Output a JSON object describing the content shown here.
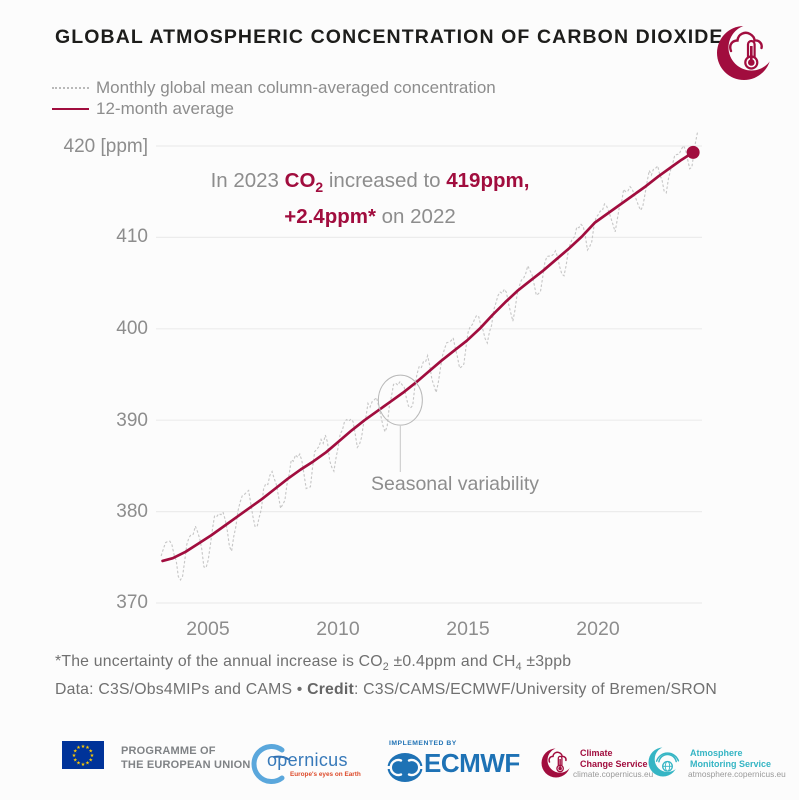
{
  "header": {
    "title": "GLOBAL ATMOSPHERIC CONCENTRATION OF CARBON DIOXIDE",
    "logo": "c3s-crescent-cloud-thermometer"
  },
  "colors": {
    "accent_burgundy": "#a10d3e",
    "title_dark": "#1d1d1b",
    "text_gray": "#8d8d8d",
    "footnote_gray": "#707070",
    "gridline": "#ececec",
    "monthly_dotted": "#c7c7c7",
    "eu_flag_blue": "#003399",
    "eu_star_yellow": "#ffcc00",
    "ecmwf_blue": "#1e72b5",
    "copernicus_blue": "#3779b9",
    "copernicus_tagline_orange": "#dd4a2a",
    "cams_teal": "#35b5c4",
    "background": "#fcfcfc"
  },
  "callout": {
    "line1": [
      {
        "t": "In 2023 ",
        "s": "p"
      },
      {
        "t": "CO",
        "s": "a"
      },
      {
        "t": "2",
        "s": "asub"
      },
      {
        "t": " increased to ",
        "s": "p"
      },
      {
        "t": "419ppm,",
        "s": "a"
      }
    ],
    "line2": [
      {
        "t": "+2.4ppm*",
        "s": "a"
      },
      {
        "t": " on 2022",
        "s": "p"
      }
    ]
  },
  "chart_data": {
    "type": "line",
    "title": "GLOBAL ATMOSPHERIC CONCENTRATION OF CARBON DIOXIDE",
    "unit": "ppm",
    "xlim": [
      2003.0,
      2024.1
    ],
    "ylim": [
      369.5,
      421.5
    ],
    "yticks": [
      420,
      410,
      400,
      390,
      380,
      370
    ],
    "ytick_labels": [
      "420 [ppm]",
      "410",
      "400",
      "390",
      "380",
      "370"
    ],
    "xticks": [
      2005,
      2010,
      2015,
      2020
    ],
    "xtick_labels": [
      "2005",
      "2010",
      "2015",
      "2020"
    ],
    "grid": "horizontal",
    "legend_position": "top-left",
    "series": [
      {
        "name": "Monthly global mean column-averaged concentration",
        "style": "dotted",
        "color": "#c7c7c7",
        "derivation": "12-month average plus seasonal cycle",
        "seasonal_amplitude_start_ppm": 2.4,
        "seasonal_amplitude_end_ppm": 1.5,
        "seasonal_peak_month": "April",
        "noise_ppm": 0.5
      },
      {
        "name": "12-month average",
        "style": "solid",
        "color": "#a10d3e",
        "points": [
          [
            2003.1,
            374.6
          ],
          [
            2003.5,
            374.9
          ],
          [
            2004.0,
            375.6
          ],
          [
            2004.5,
            376.5
          ],
          [
            2005.0,
            377.4
          ],
          [
            2005.5,
            378.4
          ],
          [
            2006.0,
            379.4
          ],
          [
            2006.5,
            380.4
          ],
          [
            2007.0,
            381.4
          ],
          [
            2007.5,
            382.5
          ],
          [
            2008.0,
            383.6
          ],
          [
            2008.5,
            384.6
          ],
          [
            2009.0,
            385.5
          ],
          [
            2009.5,
            386.5
          ],
          [
            2010.0,
            387.7
          ],
          [
            2010.5,
            388.9
          ],
          [
            2011.0,
            390.0
          ],
          [
            2011.5,
            391.0
          ],
          [
            2012.0,
            392.0
          ],
          [
            2012.5,
            393.0
          ],
          [
            2013.0,
            394.1
          ],
          [
            2013.5,
            395.3
          ],
          [
            2014.0,
            396.5
          ],
          [
            2014.5,
            397.6
          ],
          [
            2015.0,
            398.7
          ],
          [
            2015.5,
            400.0
          ],
          [
            2016.0,
            401.5
          ],
          [
            2016.5,
            402.9
          ],
          [
            2017.0,
            404.2
          ],
          [
            2017.5,
            405.3
          ],
          [
            2018.0,
            406.4
          ],
          [
            2018.5,
            407.6
          ],
          [
            2019.0,
            408.8
          ],
          [
            2019.5,
            410.1
          ],
          [
            2020.0,
            411.6
          ],
          [
            2020.5,
            412.6
          ],
          [
            2021.0,
            413.6
          ],
          [
            2021.5,
            414.6
          ],
          [
            2022.0,
            415.6
          ],
          [
            2022.5,
            416.7
          ],
          [
            2023.0,
            417.7
          ],
          [
            2023.4,
            418.5
          ],
          [
            2023.85,
            419.3
          ]
        ]
      }
    ],
    "end_marker": {
      "x": 2023.85,
      "y": 419.3,
      "color": "#a10d3e"
    },
    "annotations": [
      {
        "text": "In 2023 CO2 increased to 419ppm, +2.4ppm* on 2022"
      },
      {
        "text": "Seasonal variability",
        "target_x": 2012.4,
        "target_y": 392.2
      }
    ]
  },
  "footnote": {
    "line1": [
      {
        "t": "*The uncertainty of the annual increase is CO",
        "s": "p"
      },
      {
        "t": "2",
        "s": "sub"
      },
      {
        "t": " ±0.4ppm and CH",
        "s": "p"
      },
      {
        "t": "4",
        "s": "sub"
      },
      {
        "t": " ±3ppb",
        "s": "p"
      }
    ],
    "line2": [
      {
        "t": "Data: C3S/Obs4MIPs and CAMS • ",
        "s": "p"
      },
      {
        "t": "Credit",
        "s": "b"
      },
      {
        "t": ": C3S/CAMS/ECMWF/University of Bremen/SRON",
        "s": "p"
      }
    ]
  },
  "footer": {
    "eu": {
      "line1": "PROGRAMME OF",
      "line2": "THE EUROPEAN UNION",
      "stars": 12
    },
    "copernicus": {
      "wordmark": "opernicus",
      "tagline": "Europe's eyes on Earth"
    },
    "ecmwf": {
      "implemented_by": "IMPLEMENTED BY",
      "name": "ECMWF"
    },
    "c3s": {
      "line1": "Climate",
      "line2": "Change Service",
      "url": "climate.copernicus.eu"
    },
    "cams": {
      "line1": "Atmosphere",
      "line2": "Monitoring Service",
      "url": "atmosphere.copernicus.eu"
    }
  }
}
